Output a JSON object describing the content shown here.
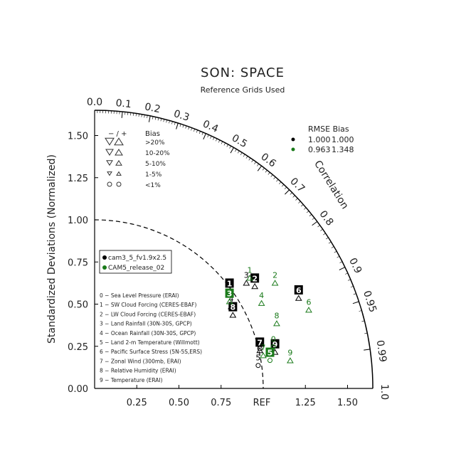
{
  "chart_data": {
    "type": "scatter",
    "diagram": "taylor",
    "title": "SON: SPACE",
    "subtitle": "Reference Grids Used",
    "ylabel": "Standardized Deviations (Normalized)",
    "correlation_label": "Correlation",
    "ref_label": "REF",
    "x_ticks": [
      "0.25",
      "0.50",
      "0.75",
      "1.25",
      "1.50"
    ],
    "x_tick_values": [
      0.25,
      0.5,
      0.75,
      1.25,
      1.5
    ],
    "y_ticks": [
      "0.00",
      "0.25",
      "0.50",
      "0.75",
      "1.00",
      "1.25",
      "1.50"
    ],
    "y_tick_values": [
      0,
      0.25,
      0.5,
      0.75,
      1.0,
      1.25,
      1.5
    ],
    "corr_ticks": [
      "0.0",
      "0.1",
      "0.2",
      "0.3",
      "0.4",
      "0.5",
      "0.6",
      "0.7",
      "0.8",
      "0.9",
      "0.95",
      "0.99",
      "1.0"
    ],
    "corr_tick_values": [
      0,
      0.1,
      0.2,
      0.3,
      0.4,
      0.5,
      0.6,
      0.7,
      0.8,
      0.9,
      0.95,
      0.99,
      1.0
    ],
    "std_max": 1.65,
    "ref_std": 1.0,
    "series": [
      {
        "name": "cam3_5_fv1.9x2.5",
        "color": "#000000",
        "rmse": "1.000",
        "bias": "1.000",
        "points": [
          {
            "id": "0",
            "x": 0.98,
            "y": 0.27
          },
          {
            "id": "1",
            "x": 0.8,
            "y": 0.61
          },
          {
            "id": "2",
            "x": 0.95,
            "y": 0.64
          },
          {
            "id": "3",
            "x": 0.9,
            "y": 0.66
          },
          {
            "id": "4",
            "x": 0.81,
            "y": 0.52
          },
          {
            "id": "5",
            "x": 0.97,
            "y": 0.17
          },
          {
            "id": "6",
            "x": 1.21,
            "y": 0.57
          },
          {
            "id": "7",
            "x": 0.98,
            "y": 0.26
          },
          {
            "id": "8",
            "x": 0.82,
            "y": 0.47
          },
          {
            "id": "9",
            "x": 1.07,
            "y": 0.25
          }
        ]
      },
      {
        "name": "CAM5_release_02",
        "color": "#1a7a1a",
        "rmse": "0.963",
        "bias": "1.348",
        "points": [
          {
            "id": "0",
            "x": 1.06,
            "y": 0.28
          },
          {
            "id": "1",
            "x": 0.92,
            "y": 0.69
          },
          {
            "id": "2",
            "x": 1.07,
            "y": 0.66
          },
          {
            "id": "3",
            "x": 0.8,
            "y": 0.55
          },
          {
            "id": "4",
            "x": 0.99,
            "y": 0.54
          },
          {
            "id": "5",
            "x": 1.04,
            "y": 0.2
          },
          {
            "id": "6",
            "x": 1.27,
            "y": 0.5
          },
          {
            "id": "7",
            "x": 1.0,
            "y": 0.23
          },
          {
            "id": "8",
            "x": 1.08,
            "y": 0.42
          },
          {
            "id": "9",
            "x": 1.16,
            "y": 0.2
          }
        ]
      }
    ]
  },
  "bias_legend": {
    "header_sign": "−  /  +",
    "header_label": "Bias",
    "rows": [
      "&gt;20%",
      "10-20%",
      "5-10%",
      "1-5%",
      "&lt;1%"
    ]
  },
  "rmse_legend": {
    "header": "RMSE  Bias"
  },
  "case_legend": [
    "0 − Sea Level Pressure (ERAI)",
    "1 − SW Cloud Forcing (CERES-EBAF)",
    "2 − LW Cloud Forcing (CERES-EBAF)",
    "3 − Land Rainfall (30N-30S, GPCP)",
    "4 − Ocean Rainfall (30N-30S, GPCP)",
    "5 − Land 2-m Temperature (Willmott)",
    "6 − Pacific Surface Stress (5N-5S,ERS)",
    "7 − Zonal Wind (300mb, ERAI)",
    "8 − Relative Humidity (ERAI)",
    "9 − Temperature (ERAI)"
  ]
}
